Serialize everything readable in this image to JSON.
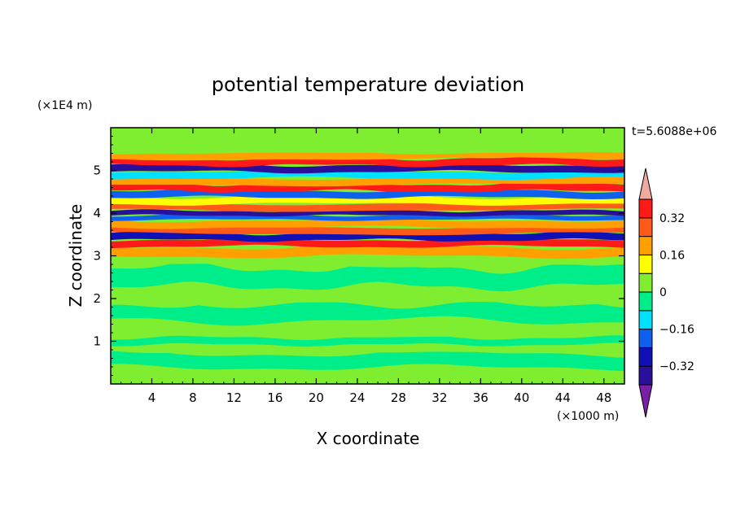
{
  "chart_data": {
    "type": "heatmap",
    "title": "potential temperature deviation",
    "xlabel": "X coordinate",
    "ylabel": "Z coordinate",
    "x_unit": "(×1000 m)",
    "y_unit": "(×1E4 m)",
    "time_label": "t=5.6088e+06",
    "xlim": [
      0,
      50
    ],
    "ylim": [
      0,
      6
    ],
    "x_ticks": [
      4,
      8,
      12,
      16,
      20,
      24,
      28,
      32,
      36,
      40,
      44,
      48
    ],
    "x_tick_labels": [
      "4",
      "8",
      "12",
      "16",
      "20",
      "24",
      "28",
      "32",
      "36",
      "40",
      "44",
      "48"
    ],
    "y_ticks": [
      1,
      2,
      3,
      4,
      5
    ],
    "y_tick_labels": [
      "1",
      "2",
      "3",
      "4",
      "5"
    ],
    "colorbar": {
      "levels": [
        -0.4,
        -0.32,
        -0.24,
        -0.16,
        -0.08,
        0,
        0.08,
        0.16,
        0.24,
        0.32,
        0.4
      ],
      "labeled_ticks": [
        0.32,
        0.16,
        0,
        -0.16,
        -0.32
      ],
      "tick_labels": [
        "0.32",
        "0.16",
        "0",
        "−0.16",
        "−0.32"
      ],
      "colors": [
        "#7a1fa8",
        "#2a0f9a",
        "#1010b4",
        "#1060f0",
        "#00e0ff",
        "#00ee8a",
        "#80ee30",
        "#ffff00",
        "#ffa000",
        "#ff5a1a",
        "#ff1a1a",
        "#f0a8a0"
      ],
      "extend": "both"
    },
    "bands": [
      {
        "z": 0.25,
        "value": 0.06
      },
      {
        "z": 0.55,
        "value": -0.02
      },
      {
        "z": 0.85,
        "value": 0.05
      },
      {
        "z": 1.0,
        "value": -0.06
      },
      {
        "z": 1.3,
        "value": 0.04
      },
      {
        "z": 1.7,
        "value": -0.04
      },
      {
        "z": 2.1,
        "value": 0.05
      },
      {
        "z": 2.5,
        "value": -0.03
      },
      {
        "z": 2.9,
        "value": 0.06
      },
      {
        "z": 3.1,
        "value": 0.2
      },
      {
        "z": 3.3,
        "value": 0.38
      },
      {
        "z": 3.45,
        "value": -0.3
      },
      {
        "z": 3.6,
        "value": 0.3
      },
      {
        "z": 3.75,
        "value": 0.2
      },
      {
        "z": 3.9,
        "value": -0.18
      },
      {
        "z": 4.0,
        "value": -0.36
      },
      {
        "z": 4.15,
        "value": 0.3
      },
      {
        "z": 4.3,
        "value": 0.14
      },
      {
        "z": 4.45,
        "value": -0.22
      },
      {
        "z": 4.6,
        "value": 0.32
      },
      {
        "z": 4.75,
        "value": 0.2
      },
      {
        "z": 4.9,
        "value": -0.12
      },
      {
        "z": 5.05,
        "value": -0.34
      },
      {
        "z": 5.2,
        "value": 0.36
      },
      {
        "z": 5.35,
        "value": 0.16
      },
      {
        "z": 5.5,
        "value": 0.04
      },
      {
        "z": 5.8,
        "value": 0.05
      }
    ]
  }
}
